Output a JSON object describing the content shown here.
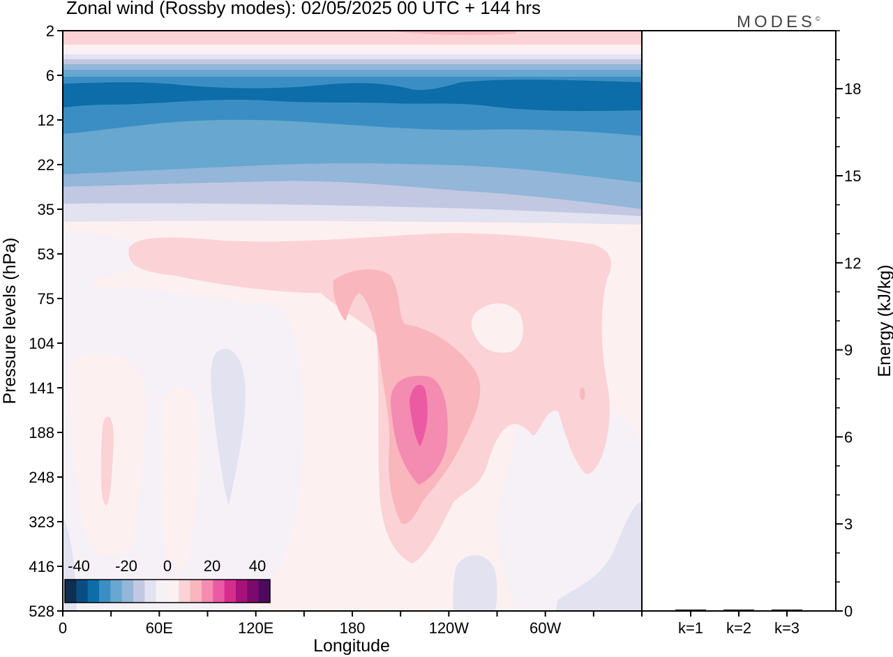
{
  "title": "Zonal wind (Rossby modes):  02/05/2025  00 UTC  + 144 hrs",
  "logo": "MODES",
  "chart_data": [
    {
      "type": "heatmap",
      "xlabel": "Longitude",
      "ylabel": "Pressure levels (hPa)",
      "x_ticks": [
        "0",
        "60E",
        "120E",
        "180",
        "120W",
        "60W"
      ],
      "y_ticks": [
        "2",
        "6",
        "12",
        "22",
        "35",
        "53",
        "75",
        "104",
        "141",
        "188",
        "248",
        "323",
        "416",
        "528"
      ],
      "colorbar": {
        "tick_labels": [
          "-40",
          "-20",
          "0",
          "20",
          "40"
        ],
        "colors": [
          "#0d2e4f",
          "#0a4d82",
          "#0c6da8",
          "#3b8ec3",
          "#68a7cf",
          "#94b6d8",
          "#c2c8e2",
          "#e2e2f0",
          "#f6f1f7",
          "#fdf0f0",
          "#fbd2d5",
          "#f9b6bd",
          "#f48bb0",
          "#ec5aa3",
          "#d52d8e",
          "#a8107a",
          "#7a0a6c",
          "#4d0a5e"
        ]
      },
      "wind_field_peaks_approx": {
        "jet_core_max": 30,
        "stratospheric_easterly_min": -25
      }
    },
    {
      "type": "bar",
      "ylabel": "Energy (kJ/kg)",
      "categories": [
        "k=1",
        "k=2",
        "k=3"
      ],
      "values": [
        0.02,
        0.01,
        0.01
      ],
      "ylim": [
        0,
        20
      ],
      "y_ticks": [
        "0",
        "3",
        "6",
        "9",
        "12",
        "15",
        "18"
      ]
    }
  ]
}
